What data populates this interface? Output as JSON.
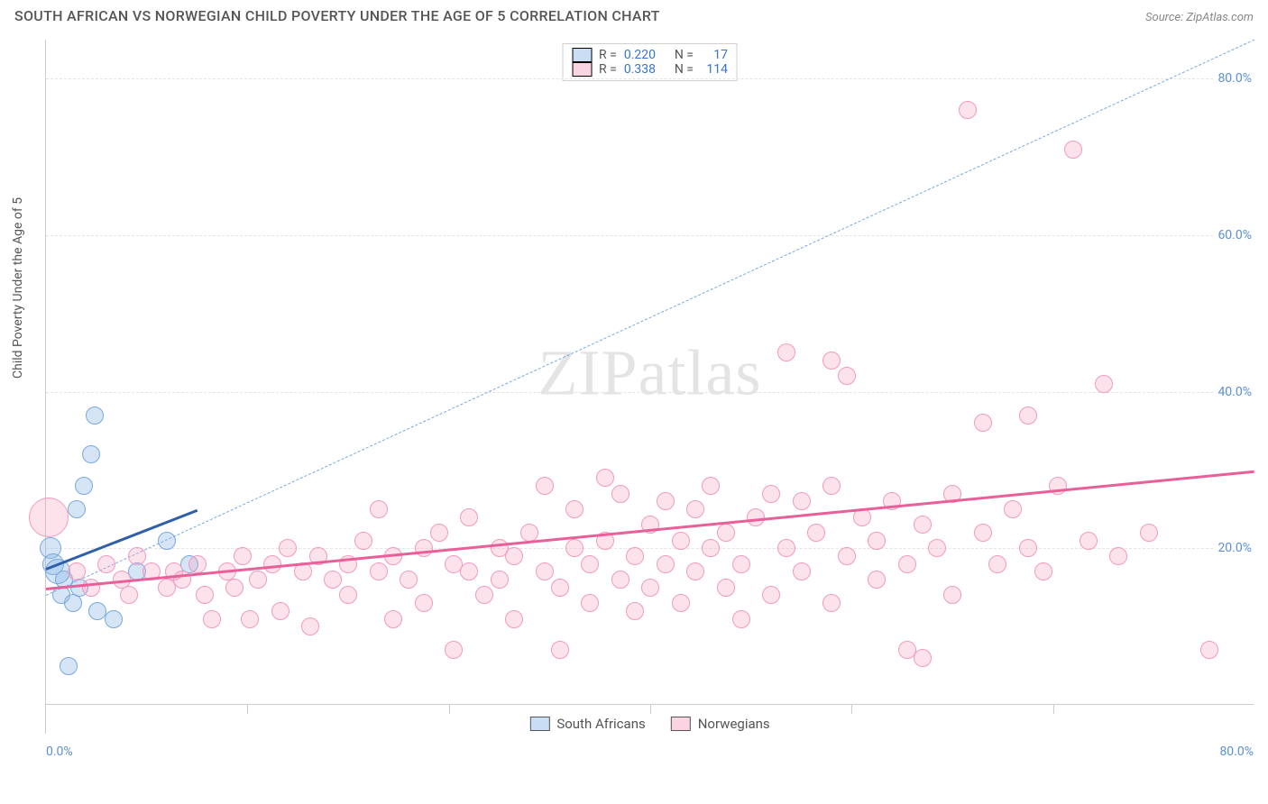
{
  "title": "SOUTH AFRICAN VS NORWEGIAN CHILD POVERTY UNDER THE AGE OF 5 CORRELATION CHART",
  "source": "Source: ZipAtlas.com",
  "ylabel": "Child Poverty Under the Age of 5",
  "watermark_a": "ZIP",
  "watermark_b": "atlas",
  "chart": {
    "type": "scatter",
    "xlim": [
      0,
      80
    ],
    "ylim": [
      0,
      85
    ],
    "xtick_labels": [
      "0.0%",
      "80.0%"
    ],
    "ytick_values": [
      20,
      40,
      60,
      80
    ],
    "ytick_labels": [
      "20.0%",
      "40.0%",
      "60.0%",
      "80.0%"
    ],
    "grid_color": "#e4e4e4",
    "axis_color": "#cccccc",
    "tick_label_color": "#5b8fd6",
    "tick_fontsize": 14,
    "background_color": "#ffffff",
    "diag_line": {
      "x1": 0,
      "y1": 14,
      "x2": 80,
      "y2": 85,
      "color": "#7aa8dd",
      "dash": true,
      "width": 1.5
    }
  },
  "series": [
    {
      "name": "South Africans",
      "color_fill": "rgba(135,180,230,0.35)",
      "color_stroke": "#7aa8dd",
      "trend_color": "#2f5fa8",
      "trend_width": 3,
      "R": "0.220",
      "N": "17",
      "trend": {
        "x1": 0,
        "y1": 17.5,
        "x2": 10,
        "y2": 25
      },
      "points": [
        {
          "x": 0.3,
          "y": 20,
          "r": 12
        },
        {
          "x": 0.5,
          "y": 18,
          "r": 12
        },
        {
          "x": 1.2,
          "y": 16,
          "r": 10
        },
        {
          "x": 1.0,
          "y": 14,
          "r": 10
        },
        {
          "x": 1.8,
          "y": 13,
          "r": 10
        },
        {
          "x": 2.2,
          "y": 15,
          "r": 10
        },
        {
          "x": 0.8,
          "y": 17,
          "r": 14
        },
        {
          "x": 2.5,
          "y": 28,
          "r": 10
        },
        {
          "x": 2.0,
          "y": 25,
          "r": 10
        },
        {
          "x": 3.0,
          "y": 32,
          "r": 10
        },
        {
          "x": 3.2,
          "y": 37,
          "r": 10
        },
        {
          "x": 3.4,
          "y": 12,
          "r": 10
        },
        {
          "x": 4.5,
          "y": 11,
          "r": 10
        },
        {
          "x": 6.0,
          "y": 17,
          "r": 10
        },
        {
          "x": 8.0,
          "y": 21,
          "r": 10
        },
        {
          "x": 9.5,
          "y": 18,
          "r": 10
        },
        {
          "x": 1.5,
          "y": 5,
          "r": 10
        }
      ]
    },
    {
      "name": "Norwegians",
      "color_fill": "rgba(245,160,190,0.30)",
      "color_stroke": "#f29ac0",
      "trend_color": "#e85f9a",
      "trend_width": 3,
      "R": "0.338",
      "N": "114",
      "trend": {
        "x1": 0,
        "y1": 15,
        "x2": 80,
        "y2": 30
      },
      "points": [
        {
          "x": 0.2,
          "y": 24,
          "r": 22
        },
        {
          "x": 2,
          "y": 17,
          "r": 10
        },
        {
          "x": 3,
          "y": 15,
          "r": 10
        },
        {
          "x": 4,
          "y": 18,
          "r": 10
        },
        {
          "x": 5,
          "y": 16,
          "r": 10
        },
        {
          "x": 5.5,
          "y": 14,
          "r": 10
        },
        {
          "x": 6,
          "y": 19,
          "r": 10
        },
        {
          "x": 7,
          "y": 17,
          "r": 10
        },
        {
          "x": 8,
          "y": 15,
          "r": 10
        },
        {
          "x": 8.5,
          "y": 17,
          "r": 10
        },
        {
          "x": 9,
          "y": 16,
          "r": 10
        },
        {
          "x": 10,
          "y": 18,
          "r": 10
        },
        {
          "x": 10.5,
          "y": 14,
          "r": 10
        },
        {
          "x": 11,
          "y": 11,
          "r": 10
        },
        {
          "x": 12,
          "y": 17,
          "r": 10
        },
        {
          "x": 12.5,
          "y": 15,
          "r": 10
        },
        {
          "x": 13,
          "y": 19,
          "r": 10
        },
        {
          "x": 13.5,
          "y": 11,
          "r": 10
        },
        {
          "x": 14,
          "y": 16,
          "r": 10
        },
        {
          "x": 15,
          "y": 18,
          "r": 10
        },
        {
          "x": 15.5,
          "y": 12,
          "r": 10
        },
        {
          "x": 16,
          "y": 20,
          "r": 10
        },
        {
          "x": 17,
          "y": 17,
          "r": 10
        },
        {
          "x": 17.5,
          "y": 10,
          "r": 10
        },
        {
          "x": 18,
          "y": 19,
          "r": 10
        },
        {
          "x": 19,
          "y": 16,
          "r": 10
        },
        {
          "x": 20,
          "y": 18,
          "r": 10
        },
        {
          "x": 20,
          "y": 14,
          "r": 10
        },
        {
          "x": 21,
          "y": 21,
          "r": 10
        },
        {
          "x": 22,
          "y": 17,
          "r": 10
        },
        {
          "x": 22,
          "y": 25,
          "r": 10
        },
        {
          "x": 23,
          "y": 19,
          "r": 10
        },
        {
          "x": 23,
          "y": 11,
          "r": 10
        },
        {
          "x": 24,
          "y": 16,
          "r": 10
        },
        {
          "x": 25,
          "y": 20,
          "r": 10
        },
        {
          "x": 25,
          "y": 13,
          "r": 10
        },
        {
          "x": 26,
          "y": 22,
          "r": 10
        },
        {
          "x": 27,
          "y": 18,
          "r": 10
        },
        {
          "x": 27,
          "y": 7,
          "r": 10
        },
        {
          "x": 28,
          "y": 17,
          "r": 10
        },
        {
          "x": 28,
          "y": 24,
          "r": 10
        },
        {
          "x": 29,
          "y": 14,
          "r": 10
        },
        {
          "x": 30,
          "y": 20,
          "r": 10
        },
        {
          "x": 30,
          "y": 16,
          "r": 10
        },
        {
          "x": 31,
          "y": 19,
          "r": 10
        },
        {
          "x": 31,
          "y": 11,
          "r": 10
        },
        {
          "x": 32,
          "y": 22,
          "r": 10
        },
        {
          "x": 33,
          "y": 17,
          "r": 10
        },
        {
          "x": 33,
          "y": 28,
          "r": 10
        },
        {
          "x": 34,
          "y": 15,
          "r": 10
        },
        {
          "x": 34,
          "y": 7,
          "r": 10
        },
        {
          "x": 35,
          "y": 20,
          "r": 10
        },
        {
          "x": 35,
          "y": 25,
          "r": 10
        },
        {
          "x": 36,
          "y": 13,
          "r": 10
        },
        {
          "x": 36,
          "y": 18,
          "r": 10
        },
        {
          "x": 37,
          "y": 21,
          "r": 10
        },
        {
          "x": 37,
          "y": 29,
          "r": 10
        },
        {
          "x": 38,
          "y": 16,
          "r": 10
        },
        {
          "x": 38,
          "y": 27,
          "r": 10
        },
        {
          "x": 39,
          "y": 19,
          "r": 10
        },
        {
          "x": 39,
          "y": 12,
          "r": 10
        },
        {
          "x": 40,
          "y": 23,
          "r": 10
        },
        {
          "x": 40,
          "y": 15,
          "r": 10
        },
        {
          "x": 41,
          "y": 26,
          "r": 10
        },
        {
          "x": 41,
          "y": 18,
          "r": 10
        },
        {
          "x": 42,
          "y": 21,
          "r": 10
        },
        {
          "x": 42,
          "y": 13,
          "r": 10
        },
        {
          "x": 43,
          "y": 25,
          "r": 10
        },
        {
          "x": 43,
          "y": 17,
          "r": 10
        },
        {
          "x": 44,
          "y": 20,
          "r": 10
        },
        {
          "x": 44,
          "y": 28,
          "r": 10
        },
        {
          "x": 45,
          "y": 15,
          "r": 10
        },
        {
          "x": 45,
          "y": 22,
          "r": 10
        },
        {
          "x": 46,
          "y": 18,
          "r": 10
        },
        {
          "x": 46,
          "y": 11,
          "r": 10
        },
        {
          "x": 47,
          "y": 24,
          "r": 10
        },
        {
          "x": 48,
          "y": 27,
          "r": 10
        },
        {
          "x": 48,
          "y": 14,
          "r": 10
        },
        {
          "x": 49,
          "y": 20,
          "r": 10
        },
        {
          "x": 50,
          "y": 26,
          "r": 10
        },
        {
          "x": 50,
          "y": 17,
          "r": 10
        },
        {
          "x": 51,
          "y": 22,
          "r": 10
        },
        {
          "x": 52,
          "y": 13,
          "r": 10
        },
        {
          "x": 52,
          "y": 28,
          "r": 10
        },
        {
          "x": 52,
          "y": 44,
          "r": 10
        },
        {
          "x": 53,
          "y": 19,
          "r": 10
        },
        {
          "x": 54,
          "y": 24,
          "r": 10
        },
        {
          "x": 55,
          "y": 16,
          "r": 10
        },
        {
          "x": 55,
          "y": 21,
          "r": 10
        },
        {
          "x": 56,
          "y": 26,
          "r": 10
        },
        {
          "x": 57,
          "y": 18,
          "r": 10
        },
        {
          "x": 57,
          "y": 7,
          "r": 10
        },
        {
          "x": 58,
          "y": 23,
          "r": 10
        },
        {
          "x": 58,
          "y": 6,
          "r": 10
        },
        {
          "x": 59,
          "y": 20,
          "r": 10
        },
        {
          "x": 60,
          "y": 27,
          "r": 10
        },
        {
          "x": 60,
          "y": 14,
          "r": 10
        },
        {
          "x": 61,
          "y": 76,
          "r": 10
        },
        {
          "x": 62,
          "y": 22,
          "r": 10
        },
        {
          "x": 62,
          "y": 36,
          "r": 10
        },
        {
          "x": 63,
          "y": 18,
          "r": 10
        },
        {
          "x": 64,
          "y": 25,
          "r": 10
        },
        {
          "x": 65,
          "y": 20,
          "r": 10
        },
        {
          "x": 65,
          "y": 37,
          "r": 10
        },
        {
          "x": 66,
          "y": 17,
          "r": 10
        },
        {
          "x": 67,
          "y": 28,
          "r": 10
        },
        {
          "x": 68,
          "y": 71,
          "r": 10
        },
        {
          "x": 69,
          "y": 21,
          "r": 10
        },
        {
          "x": 70,
          "y": 41,
          "r": 10
        },
        {
          "x": 71,
          "y": 19,
          "r": 10
        },
        {
          "x": 73,
          "y": 22,
          "r": 10
        },
        {
          "x": 77,
          "y": 7,
          "r": 10
        },
        {
          "x": 53,
          "y": 42,
          "r": 10
        },
        {
          "x": 49,
          "y": 45,
          "r": 10
        }
      ]
    }
  ],
  "legend_top": {
    "rows": [
      {
        "swatch": "blue",
        "R_label": "R =",
        "R": "0.220",
        "N_label": "N =",
        "N": "17"
      },
      {
        "swatch": "pink",
        "R_label": "R =",
        "R": "0.338",
        "N_label": "N =",
        "N": "114"
      }
    ]
  },
  "legend_bottom": {
    "items": [
      {
        "swatch": "blue",
        "label": "South Africans"
      },
      {
        "swatch": "pink",
        "label": "Norwegians"
      }
    ]
  }
}
